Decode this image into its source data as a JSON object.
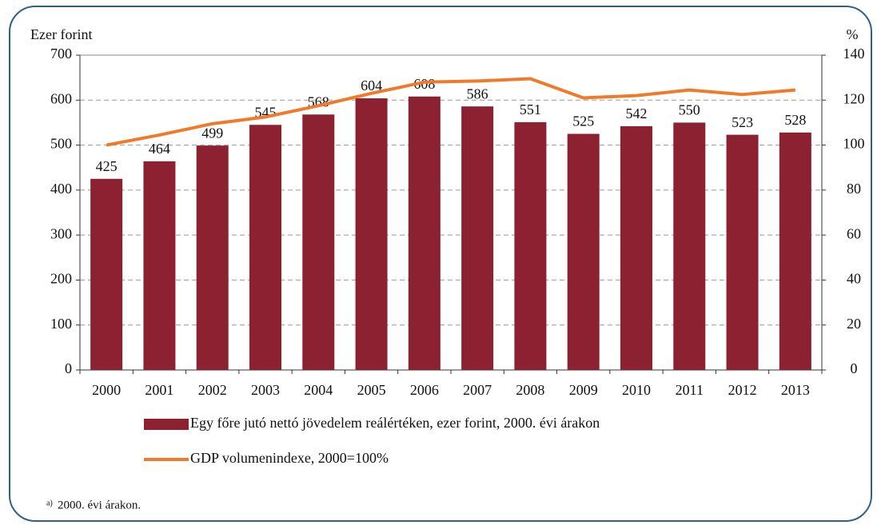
{
  "chart_data": {
    "type": "bar",
    "y_label": "Ezer forint",
    "y2_label": "%",
    "categories": [
      "2000",
      "2001",
      "2002",
      "2003",
      "2004",
      "2005",
      "2006",
      "2007",
      "2008",
      "2009",
      "2010",
      "2011",
      "2012",
      "2013"
    ],
    "series": [
      {
        "name": "Egy főre jutó nettó jövedelem reálértéken, ezer forint, 2000. évi árakon",
        "type": "bar",
        "color": "#8b2131",
        "values": [
          425,
          464,
          499,
          545,
          568,
          604,
          608,
          586,
          551,
          525,
          542,
          550,
          523,
          528
        ]
      },
      {
        "name": "GDP volumenindexe, 2000=100%",
        "type": "line",
        "axis": "y2",
        "color": "#f07a2a",
        "values": [
          100,
          104.5,
          109.5,
          112.5,
          117.5,
          123,
          128,
          128.5,
          129.5,
          121,
          122,
          124.5,
          122.5,
          124.5
        ]
      }
    ],
    "ylim": [
      0,
      700
    ],
    "yticks": [
      0,
      100,
      200,
      300,
      400,
      500,
      600,
      700
    ],
    "y2lim": [
      0,
      140
    ],
    "y2ticks": [
      0,
      20,
      40,
      60,
      80,
      100,
      120,
      140
    ],
    "grid": true,
    "footnote_marker": "a)",
    "footnote": "2000. évi árakon."
  }
}
